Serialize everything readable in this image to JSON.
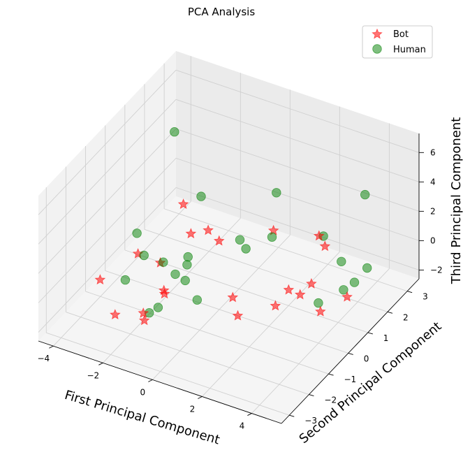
{
  "chart_data": {
    "type": "scatter3d",
    "title": "PCA Analysis",
    "xlabel": "First Principal Component",
    "ylabel": "Second Principal Component",
    "zlabel": "Third Principal Component",
    "xlim": [
      -4.6,
      5.2
    ],
    "ylim": [
      -3.4,
      3.6
    ],
    "zlim": [
      -2.6,
      7.3
    ],
    "xticks": [
      -4,
      -2,
      0,
      2,
      4
    ],
    "yticks": [
      -3,
      -2,
      -1,
      0,
      1,
      2,
      3
    ],
    "zticks": [
      -2,
      0,
      2,
      4,
      6
    ],
    "legend_position": "top-right",
    "grid": true,
    "series": [
      {
        "name": "Bot",
        "marker": "star",
        "color": "#ff0000",
        "points": [
          [
            -2.4,
            1.2,
            1.5
          ],
          [
            -1.7,
            0.7,
            0.6
          ],
          [
            -1.4,
            1.2,
            0.3
          ],
          [
            -0.8,
            1.0,
            0.2
          ],
          [
            0.6,
            2.0,
            0.3
          ],
          [
            1.8,
            2.8,
            -0.5
          ],
          [
            2.2,
            2.6,
            -0.7
          ],
          [
            3.0,
            0.9,
            -0.4
          ],
          [
            2.4,
            0.5,
            -0.6
          ],
          [
            4.0,
            0.1,
            -0.6
          ],
          [
            4.6,
            0.7,
            -0.1
          ],
          [
            3.1,
            0.2,
            -0.1
          ],
          [
            2.5,
            -0.3,
            -0.5
          ],
          [
            -3.2,
            -0.1,
            -0.5
          ],
          [
            -2.3,
            -0.1,
            -0.6
          ],
          [
            -3.3,
            -1.9,
            0.2
          ],
          [
            -1.6,
            -0.8,
            -1.1
          ],
          [
            -1.1,
            -1.4,
            -0.2
          ],
          [
            -2.3,
            -2.4,
            -0.9
          ],
          [
            -1.2,
            -2.3,
            -0.8
          ],
          [
            0.7,
            -0.2,
            -1.1
          ],
          [
            1.3,
            -0.7,
            -1.3
          ],
          [
            -1.4,
            -2.1,
            -0.7
          ]
        ]
      },
      {
        "name": "Human",
        "marker": "circle",
        "color": "#008000",
        "points": [
          [
            -2.6,
            1.0,
            6.6
          ],
          [
            -2.0,
            1.6,
            1.7
          ],
          [
            0.4,
            2.4,
            2.2
          ],
          [
            3.5,
            3.0,
            3.0
          ],
          [
            -0.2,
            1.3,
            0.2
          ],
          [
            0.7,
            1.8,
            0.2
          ],
          [
            0.2,
            1.1,
            0.1
          ],
          [
            1.9,
            2.9,
            -0.6
          ],
          [
            3.1,
            2.3,
            -0.8
          ],
          [
            3.9,
            2.6,
            -1.2
          ],
          [
            3.9,
            1.4,
            -1.0
          ],
          [
            4.1,
            1.7,
            -0.8
          ],
          [
            3.6,
            0.5,
            -0.8
          ],
          [
            -3.4,
            0.1,
            0.5
          ],
          [
            -2.8,
            -0.3,
            -0.1
          ],
          [
            -2.1,
            -0.2,
            -0.3
          ],
          [
            -1.3,
            0.0,
            -0.3
          ],
          [
            -1.5,
            0.3,
            -0.3
          ],
          [
            -1.3,
            -0.6,
            -0.1
          ],
          [
            -0.9,
            -0.6,
            -0.3
          ],
          [
            -3.0,
            -1.0,
            -0.9
          ],
          [
            -0.1,
            -1.0,
            -0.6
          ],
          [
            -1.4,
            -1.8,
            -1.1
          ],
          [
            -1.2,
            -1.6,
            -0.9
          ]
        ]
      }
    ]
  }
}
